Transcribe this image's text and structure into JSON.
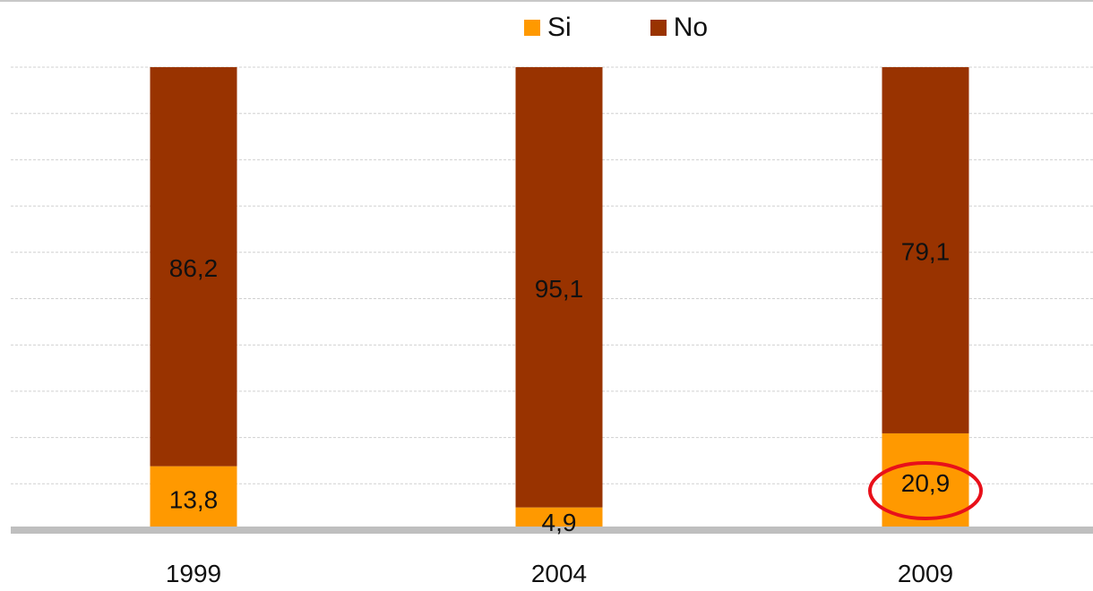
{
  "chart_data": {
    "type": "bar",
    "stacked": true,
    "percent_scale": true,
    "categories": [
      "1999",
      "2004",
      "2009"
    ],
    "series": [
      {
        "name": "Si",
        "color": "#ff9900",
        "values": [
          13.8,
          4.9,
          20.9
        ]
      },
      {
        "name": "No",
        "color": "#993300",
        "values": [
          86.2,
          95.1,
          79.1
        ]
      }
    ],
    "data_labels": [
      [
        "13,8",
        "4,9",
        "20,9"
      ],
      [
        "86,2",
        "95,1",
        "79,1"
      ]
    ],
    "ylim": [
      0,
      100
    ],
    "grid": true,
    "legend_position": "top",
    "highlight": {
      "category": "2009",
      "series": "Si",
      "shape": "ellipse",
      "color": "#e8101a"
    }
  }
}
